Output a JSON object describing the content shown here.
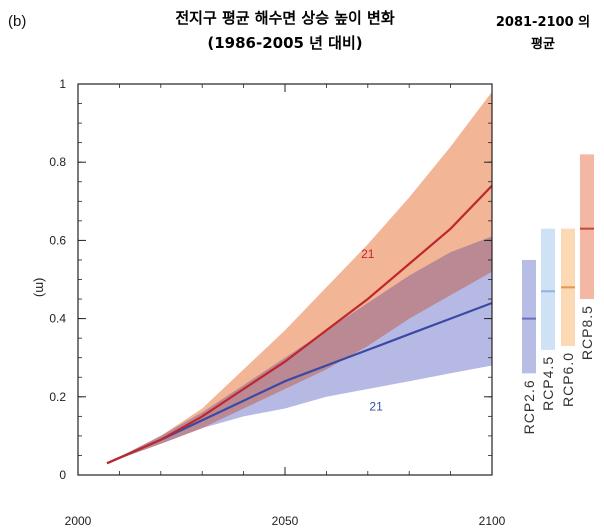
{
  "panel_label": "(b)",
  "title_line1": "전지구 평균 해수면 상승 높이 변화",
  "title_line2": "(1986-2005 년 대비)",
  "side_title_line1": "2081-2100 의",
  "side_title_line2": "평균",
  "colors": {
    "rcp85_line": "#c0272d",
    "rcp85_band": "#f0a882",
    "rcp26_line": "#3a4aa3",
    "rcp26_band": "#a9addf",
    "overlap_band": "#bb8790"
  },
  "chart_data": {
    "type": "line",
    "title": "전지구 평균 해수면 상승 높이 변화 (1986-2005 년 대비)",
    "xlabel": "",
    "ylabel": "(m)",
    "xlim": [
      2000,
      2100
    ],
    "ylim": [
      0,
      1
    ],
    "x_ticks": [
      "2000",
      "2050",
      "2100"
    ],
    "y_ticks": [
      "0",
      "0.2",
      "0.4",
      "0.6",
      "0.8",
      "1"
    ],
    "x": [
      2007,
      2020,
      2030,
      2040,
      2050,
      2060,
      2070,
      2080,
      2090,
      2100
    ],
    "series": [
      {
        "name": "RCP8.5",
        "mean": [
          0.03,
          0.09,
          0.15,
          0.22,
          0.29,
          0.37,
          0.45,
          0.54,
          0.63,
          0.74
        ],
        "low": [
          0.03,
          0.08,
          0.12,
          0.17,
          0.22,
          0.27,
          0.33,
          0.4,
          0.46,
          0.52
        ],
        "high": [
          0.03,
          0.1,
          0.17,
          0.27,
          0.37,
          0.48,
          0.59,
          0.71,
          0.84,
          0.98
        ],
        "count_label": "21"
      },
      {
        "name": "RCP2.6",
        "mean": [
          0.03,
          0.09,
          0.14,
          0.19,
          0.24,
          0.28,
          0.32,
          0.36,
          0.4,
          0.44
        ],
        "low": [
          0.03,
          0.08,
          0.12,
          0.15,
          0.17,
          0.2,
          0.22,
          0.24,
          0.26,
          0.28
        ],
        "high": [
          0.03,
          0.1,
          0.16,
          0.23,
          0.3,
          0.37,
          0.44,
          0.51,
          0.57,
          0.61
        ],
        "count_label": "21"
      }
    ],
    "period_bars": [
      {
        "label": "RCP2.6",
        "low": 0.26,
        "high": 0.55,
        "mean": 0.4,
        "fill": "#b8bde6",
        "line": "#6a70b8"
      },
      {
        "label": "RCP4.5",
        "low": 0.32,
        "high": 0.63,
        "mean": 0.47,
        "fill": "#cfe1f5",
        "line": "#8fb3de"
      },
      {
        "label": "RCP6.0",
        "low": 0.33,
        "high": 0.63,
        "mean": 0.48,
        "fill": "#fbd9b5",
        "line": "#e8974a"
      },
      {
        "label": "RCP8.5",
        "low": 0.45,
        "high": 0.82,
        "mean": 0.63,
        "fill": "#f3b7a3",
        "line": "#c4473a"
      }
    ]
  }
}
